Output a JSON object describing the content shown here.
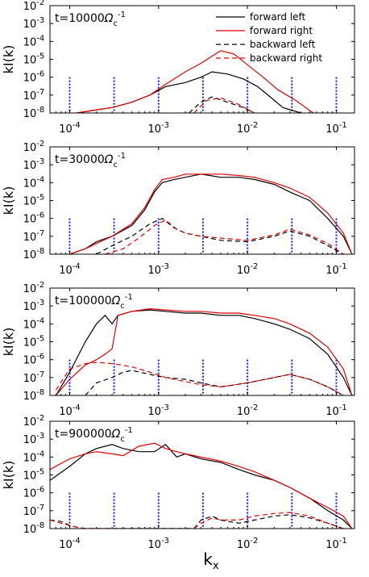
{
  "figure": {
    "xlabel_main": "k",
    "xlabel_sub": "x"
  },
  "chart_data": [
    {
      "type": "line",
      "ylabel": "kI(k)",
      "annotation": {
        "prefix": "t=10000",
        "omega": "Ω",
        "sub": "c",
        "sup": "-1"
      },
      "xscale": "log",
      "yscale": "log",
      "xlim": [
        6e-05,
        0.16
      ],
      "ylim": [
        1e-08,
        0.01
      ],
      "xticks": [
        "10^-4",
        "10^-3",
        "10^-2",
        "10^-1"
      ],
      "yticks": [
        "10^-8",
        "10^-7",
        "10^-6",
        "10^-5",
        "10^-4",
        "10^-3",
        "10^-2"
      ],
      "vlines_x": [
        0.0001,
        0.000316,
        0.001,
        0.00316,
        0.01,
        0.0316,
        0.1
      ],
      "legend": {
        "position": "top-right",
        "entries": [
          "forward left",
          "forward right",
          "backward left",
          "backward right"
        ]
      },
      "series": [
        {
          "name": "forward left",
          "color": "#000000",
          "dash": false,
          "x": [
            0.00012,
            0.0002,
            0.0003,
            0.0005,
            0.0008,
            0.0012,
            0.002,
            0.003,
            0.004,
            0.006,
            0.009,
            0.013,
            0.018,
            0.025,
            0.04
          ],
          "y": [
            1e-08,
            1.5e-08,
            2e-08,
            4e-08,
            1e-07,
            3e-07,
            5e-07,
            1e-06,
            2e-06,
            1.5e-06,
            8e-07,
            3e-07,
            8e-08,
            2e-08,
            1e-08
          ]
        },
        {
          "name": "forward right",
          "color": "#e00000",
          "dash": false,
          "x": [
            0.00012,
            0.0002,
            0.0003,
            0.0005,
            0.0008,
            0.0012,
            0.002,
            0.003,
            0.004,
            0.005,
            0.007,
            0.01,
            0.015,
            0.022,
            0.035,
            0.055
          ],
          "y": [
            1e-08,
            1.5e-08,
            2e-08,
            4e-08,
            1e-07,
            4e-07,
            2e-06,
            6e-06,
            1.5e-05,
            3e-05,
            2e-05,
            5e-06,
            1e-06,
            2e-07,
            5e-08,
            1e-08
          ]
        },
        {
          "name": "backward left",
          "color": "#000000",
          "dash": true,
          "x": [
            0.0022,
            0.003,
            0.004,
            0.006,
            0.009,
            0.012
          ],
          "y": [
            1e-08,
            4e-08,
            8e-08,
            4e-08,
            2e-08,
            1e-08
          ]
        },
        {
          "name": "backward right",
          "color": "#e00000",
          "dash": true,
          "x": [
            0.0025,
            0.0035,
            0.005,
            0.008,
            0.012
          ],
          "y": [
            1e-08,
            5e-08,
            7e-08,
            3e-08,
            1e-08
          ]
        }
      ]
    },
    {
      "type": "line",
      "ylabel": "kI(k)",
      "annotation": {
        "prefix": "t=30000",
        "omega": "Ω",
        "sub": "c",
        "sup": "-1"
      },
      "xscale": "log",
      "yscale": "log",
      "xlim": [
        6e-05,
        0.16
      ],
      "ylim": [
        1e-08,
        0.01
      ],
      "xticks": [
        "10^-4",
        "10^-3",
        "10^-2",
        "10^-1"
      ],
      "yticks": [
        "10^-8",
        "10^-7",
        "10^-6",
        "10^-5",
        "10^-4",
        "10^-3",
        "10^-2"
      ],
      "vlines_x": [
        0.0001,
        0.000316,
        0.001,
        0.00316,
        0.01,
        0.0316,
        0.1
      ],
      "series": [
        {
          "name": "forward left",
          "color": "#000000",
          "dash": false,
          "x": [
            0.0001,
            0.00015,
            0.0002,
            0.0003,
            0.0005,
            0.0007,
            0.0009,
            0.0011,
            0.0015,
            0.002,
            0.003,
            0.005,
            0.008,
            0.012,
            0.02,
            0.03,
            0.05,
            0.08,
            0.12,
            0.15
          ],
          "y": [
            1e-08,
            2e-08,
            5e-08,
            1e-07,
            4e-07,
            3e-06,
            3e-05,
            0.0001,
            0.00015,
            0.0002,
            0.0003,
            0.0002,
            0.0002,
            0.00015,
            8e-05,
            3e-05,
            1e-05,
            1e-06,
            1e-07,
            1e-08
          ]
        },
        {
          "name": "forward right",
          "color": "#e00000",
          "dash": false,
          "x": [
            0.0001,
            0.00015,
            0.0002,
            0.0003,
            0.0005,
            0.0007,
            0.0009,
            0.0011,
            0.0015,
            0.002,
            0.003,
            0.005,
            0.008,
            0.012,
            0.02,
            0.03,
            0.05,
            0.08,
            0.12,
            0.15
          ],
          "y": [
            1e-08,
            2e-08,
            4e-08,
            1e-07,
            5e-07,
            4e-06,
            4e-05,
            0.00015,
            0.0002,
            0.0003,
            0.0003,
            0.0003,
            0.00025,
            0.0002,
            0.0001,
            5e-05,
            1.5e-05,
            2e-06,
            1.5e-07,
            1e-08
          ]
        },
        {
          "name": "backward left",
          "color": "#000000",
          "dash": true,
          "x": [
            0.0002,
            0.0003,
            0.0005,
            0.0008,
            0.0011,
            0.0015,
            0.002,
            0.003,
            0.005,
            0.01,
            0.02,
            0.03,
            0.05,
            0.08,
            0.12
          ],
          "y": [
            1e-08,
            3e-08,
            1e-07,
            5e-07,
            1e-06,
            3e-07,
            1.5e-07,
            1e-07,
            6e-08,
            5e-08,
            1e-07,
            2e-07,
            1e-07,
            3e-08,
            1e-08
          ]
        },
        {
          "name": "backward right",
          "color": "#e00000",
          "dash": true,
          "x": [
            0.00025,
            0.0004,
            0.0006,
            0.0009,
            0.0012,
            0.0016,
            0.002,
            0.003,
            0.005,
            0.01,
            0.02,
            0.03,
            0.05,
            0.08,
            0.12
          ],
          "y": [
            1e-08,
            2e-08,
            8e-08,
            4e-07,
            8e-07,
            2.5e-07,
            1.5e-07,
            1e-07,
            8e-08,
            6e-08,
            1.2e-07,
            2.5e-07,
            1.2e-07,
            4e-08,
            1e-08
          ]
        }
      ]
    },
    {
      "type": "line",
      "ylabel": "kI(k)",
      "annotation": {
        "prefix": "t=100000",
        "omega": "Ω",
        "sub": "c",
        "sup": "-1"
      },
      "xscale": "log",
      "yscale": "log",
      "xlim": [
        6e-05,
        0.16
      ],
      "ylim": [
        1e-08,
        0.01
      ],
      "xticks": [
        "10^-4",
        "10^-3",
        "10^-2",
        "10^-1"
      ],
      "yticks": [
        "10^-8",
        "10^-7",
        "10^-6",
        "10^-5",
        "10^-4",
        "10^-3",
        "10^-2"
      ],
      "vlines_x": [
        0.0001,
        0.000316,
        0.001,
        0.00316,
        0.01,
        0.0316,
        0.1
      ],
      "series": [
        {
          "name": "forward left",
          "color": "#000000",
          "dash": false,
          "x": [
            7e-05,
            0.0001,
            0.00015,
            0.0002,
            0.00025,
            0.0003,
            0.00035,
            0.0005,
            0.0008,
            0.0012,
            0.002,
            0.003,
            0.005,
            0.008,
            0.012,
            0.02,
            0.03,
            0.05,
            0.08,
            0.12,
            0.15
          ],
          "y": [
            1e-08,
            2e-07,
            1e-05,
            0.0001,
            0.0003,
            0.0001,
            0.0003,
            0.0005,
            0.0006,
            0.0005,
            0.0004,
            0.0004,
            0.0003,
            0.0003,
            0.0002,
            0.0001,
            5e-05,
            1.5e-05,
            2e-06,
            1e-07,
            1e-08
          ]
        },
        {
          "name": "forward right",
          "color": "#e00000",
          "dash": false,
          "x": [
            7e-05,
            0.0001,
            0.00015,
            0.0002,
            0.00025,
            0.0003,
            0.00035,
            0.0005,
            0.0008,
            0.0012,
            0.002,
            0.003,
            0.005,
            0.008,
            0.012,
            0.02,
            0.03,
            0.05,
            0.08,
            0.12,
            0.15
          ],
          "y": [
            1e-08,
            8e-08,
            5e-07,
            1e-06,
            2e-06,
            4e-06,
            0.0003,
            0.0005,
            0.0007,
            0.0006,
            0.0005,
            0.0005,
            0.0004,
            0.0004,
            0.0003,
            0.0002,
            0.0001,
            3e-05,
            5e-06,
            3e-07,
            1e-08
          ]
        },
        {
          "name": "backward left",
          "color": "#000000",
          "dash": true,
          "x": [
            0.00015,
            0.0002,
            0.0003,
            0.0004,
            0.0005,
            0.0008,
            0.0012,
            0.002,
            0.003,
            0.005,
            0.01,
            0.02,
            0.03,
            0.05,
            0.08,
            0.12
          ],
          "y": [
            1e-08,
            5e-08,
            1e-07,
            2e-07,
            2.5e-07,
            1.5e-07,
            1e-07,
            8e-08,
            5e-08,
            3e-08,
            5e-08,
            1e-07,
            1.5e-07,
            8e-08,
            3e-08,
            1e-08
          ]
        },
        {
          "name": "backward right",
          "color": "#e00000",
          "dash": true,
          "x": [
            7e-05,
            0.0001,
            0.00015,
            0.0002,
            0.0003,
            0.0005,
            0.0008,
            0.0012,
            0.002,
            0.003,
            0.005,
            0.01,
            0.02,
            0.03,
            0.05,
            0.08,
            0.12
          ],
          "y": [
            2e-08,
            3e-07,
            6e-07,
            7e-07,
            6e-07,
            4e-07,
            2e-07,
            1e-07,
            6e-08,
            4e-08,
            3e-08,
            5e-08,
            1e-07,
            1.5e-07,
            8e-08,
            3e-08,
            1e-08
          ]
        }
      ]
    },
    {
      "type": "line",
      "ylabel": "kI(k)",
      "annotation": {
        "prefix": "t=900000",
        "omega": "Ω",
        "sub": "c",
        "sup": "-1"
      },
      "xscale": "log",
      "yscale": "log",
      "xlim": [
        6e-05,
        0.16
      ],
      "ylim": [
        1e-08,
        0.01
      ],
      "xticks": [
        "10^-4",
        "10^-3",
        "10^-2",
        "10^-1"
      ],
      "yticks": [
        "10^-8",
        "10^-7",
        "10^-6",
        "10^-5",
        "10^-4",
        "10^-3",
        "10^-2"
      ],
      "vlines_x": [
        0.0001,
        0.000316,
        0.001,
        0.00316,
        0.01,
        0.0316,
        0.1
      ],
      "series": [
        {
          "name": "forward left",
          "color": "#000000",
          "dash": false,
          "x": [
            6e-05,
            0.0001,
            0.00015,
            0.0002,
            0.0003,
            0.0004,
            0.0006,
            0.0009,
            0.0012,
            0.0016,
            0.002,
            0.003,
            0.005,
            0.008,
            0.012,
            0.02,
            0.03,
            0.05,
            0.08,
            0.12,
            0.15
          ],
          "y": [
            5e-06,
            3e-05,
            0.00015,
            0.0003,
            0.0005,
            0.0003,
            0.0002,
            0.0002,
            0.0005,
            0.0001,
            0.00015,
            8e-05,
            5e-05,
            2e-05,
            1e-05,
            5e-06,
            2e-06,
            5e-07,
            1e-07,
            3e-08,
            1e-08
          ]
        },
        {
          "name": "forward right",
          "color": "#e00000",
          "dash": false,
          "x": [
            6e-05,
            0.0001,
            0.00015,
            0.0002,
            0.0003,
            0.0004,
            0.0006,
            0.0009,
            0.0012,
            0.0016,
            0.002,
            0.003,
            0.005,
            0.008,
            0.012,
            0.02,
            0.03,
            0.05,
            0.08,
            0.12,
            0.15
          ],
          "y": [
            2e-05,
            8e-05,
            0.00015,
            0.0002,
            0.00015,
            0.00012,
            0.0004,
            0.0006,
            0.0003,
            0.0002,
            0.00015,
            0.0001,
            6e-05,
            3e-05,
            1.5e-05,
            5e-06,
            2e-06,
            5e-07,
            1.5e-07,
            5e-08,
            1e-08
          ]
        },
        {
          "name": "backward left",
          "color": "#000000",
          "dash": true,
          "x": [
            6e-05,
            8e-05,
            0.0001,
            0.00012,
            0.00015,
            0.0002,
            0.0025,
            0.003,
            0.004,
            0.005,
            0.008,
            0.012,
            0.02,
            0.03,
            0.05,
            0.08,
            0.12
          ],
          "y": [
            3e-08,
            2.5e-08,
            1.5e-08,
            1.2e-08,
            1e-08,
            1e-08,
            1e-08,
            3e-08,
            5e-08,
            3e-08,
            2e-08,
            3e-08,
            5e-08,
            6e-08,
            4e-08,
            2e-08,
            1e-08
          ]
        },
        {
          "name": "backward right",
          "color": "#e00000",
          "dash": true,
          "x": [
            6e-05,
            8e-05,
            0.0001,
            0.00012,
            0.00015,
            0.0002,
            0.0025,
            0.003,
            0.004,
            0.005,
            0.008,
            0.012,
            0.02,
            0.03,
            0.05,
            0.08,
            0.12
          ],
          "y": [
            3e-08,
            2e-08,
            1.5e-08,
            1.2e-08,
            1e-08,
            1e-08,
            1e-08,
            2e-08,
            4e-08,
            3e-08,
            3e-08,
            5e-08,
            7e-08,
            8e-08,
            5e-08,
            2e-08,
            1e-08
          ]
        }
      ]
    }
  ]
}
